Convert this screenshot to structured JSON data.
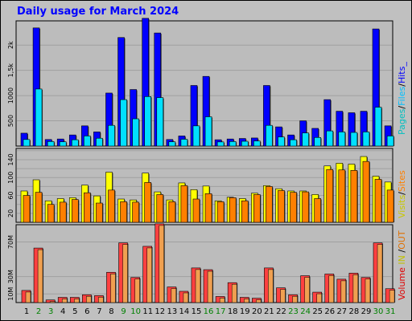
{
  "page": {
    "title": "Daily usage for March 2024"
  },
  "colors": {
    "background": "#c0c0c0",
    "plot_background": "#bcbcbc",
    "hits": "#0000ff",
    "files": "#00e0ff",
    "pages": "#00c0c0",
    "visits": "#ffff00",
    "sites": "#ff8000",
    "kbytes": "#ff4040",
    "in": "#c0c000",
    "out": "#e07000",
    "weekday_label": "#000000",
    "weekend_label": "#008000"
  },
  "legends": {
    "top": {
      "pages": "Pages",
      "sep1": "/",
      "files": "Files",
      "sep2": "/",
      "hits": "Hits_"
    },
    "middle": {
      "visits": "Visits",
      "sep1": "/",
      "sites": "Sites"
    },
    "bottom": {
      "volume": "Volume",
      "sep1": " ",
      "in": "IN",
      "sep2": " /",
      "out": "OUT"
    }
  },
  "chart_data": [
    {
      "type": "bar",
      "panel": "hits-files-pages",
      "categories": [
        "1",
        "2",
        "3",
        "4",
        "5",
        "6",
        "7",
        "8",
        "9",
        "10",
        "11",
        "12",
        "13",
        "14",
        "15",
        "16",
        "17",
        "18",
        "19",
        "20",
        "21",
        "22",
        "23",
        "24",
        "25",
        "26",
        "27",
        "28",
        "29",
        "30",
        "31"
      ],
      "weekend_days": [
        "2",
        "3",
        "9",
        "10",
        "16",
        "17",
        "23",
        "24",
        "30",
        "31"
      ],
      "yticks": [
        500,
        1000,
        1500,
        2000
      ],
      "ytick_labels": [
        "500",
        "1000",
        "1,5k",
        "2k"
      ],
      "ylim": [
        0,
        2480
      ],
      "series": [
        {
          "name": "Hits",
          "values": [
            255,
            2340,
            130,
            140,
            220,
            400,
            280,
            1050,
            2150,
            1120,
            2530,
            2240,
            130,
            200,
            1200,
            1380,
            125,
            140,
            150,
            160,
            1200,
            380,
            220,
            500,
            350,
            920,
            690,
            660,
            690,
            2320,
            400
          ]
        },
        {
          "name": "Files",
          "values": [
            130,
            1130,
            90,
            85,
            125,
            200,
            155,
            410,
            920,
            540,
            980,
            960,
            85,
            135,
            400,
            580,
            82,
            90,
            95,
            100,
            410,
            180,
            125,
            260,
            170,
            300,
            280,
            270,
            280,
            770,
            200
          ]
        }
      ]
    },
    {
      "type": "bar",
      "panel": "visits-sites",
      "categories": [
        "1",
        "2",
        "3",
        "4",
        "5",
        "6",
        "7",
        "8",
        "9",
        "10",
        "11",
        "12",
        "13",
        "14",
        "15",
        "16",
        "17",
        "18",
        "19",
        "20",
        "21",
        "22",
        "23",
        "24",
        "25",
        "26",
        "27",
        "28",
        "29",
        "30",
        "31"
      ],
      "yticks": [
        20,
        40,
        60,
        80,
        100,
        120,
        140,
        160
      ],
      "ytick_labels": [
        "20",
        "",
        "60",
        "",
        "100",
        "",
        "140",
        ""
      ],
      "ylim": [
        0,
        165
      ],
      "series": [
        {
          "name": "Visits",
          "values": [
            70,
            95,
            48,
            53,
            55,
            83,
            59,
            112,
            52,
            50,
            110,
            68,
            50,
            88,
            73,
            81,
            48,
            56,
            53,
            65,
            82,
            75,
            70,
            70,
            62,
            126,
            132,
            130,
            147,
            103,
            90
          ]
        },
        {
          "name": "Sites",
          "values": [
            60,
            67,
            40,
            45,
            51,
            66,
            43,
            72,
            46,
            45,
            89,
            62,
            46,
            82,
            52,
            64,
            46,
            55,
            48,
            62,
            80,
            71,
            67,
            68,
            53,
            118,
            117,
            116,
            136,
            96,
            72
          ]
        }
      ]
    },
    {
      "type": "bar",
      "panel": "volume",
      "categories": [
        "1",
        "2",
        "3",
        "4",
        "5",
        "6",
        "7",
        "8",
        "9",
        "10",
        "11",
        "12",
        "13",
        "14",
        "15",
        "16",
        "17",
        "18",
        "19",
        "20",
        "21",
        "22",
        "23",
        "24",
        "25",
        "26",
        "27",
        "28",
        "29",
        "30",
        "31"
      ],
      "yticks": [
        10,
        30,
        70
      ],
      "ytick_labels": [
        "10M",
        "30M",
        "70M"
      ],
      "ylim": [
        0,
        90
      ],
      "series": [
        {
          "name": "Volume",
          "values": [
            14,
            63,
            3,
            6,
            6,
            9,
            8,
            35,
            69,
            29,
            65,
            91,
            18,
            13,
            40,
            38,
            7,
            23,
            6,
            5,
            40,
            17,
            9,
            31,
            12,
            33,
            27,
            34,
            29,
            69,
            16
          ]
        }
      ]
    }
  ]
}
